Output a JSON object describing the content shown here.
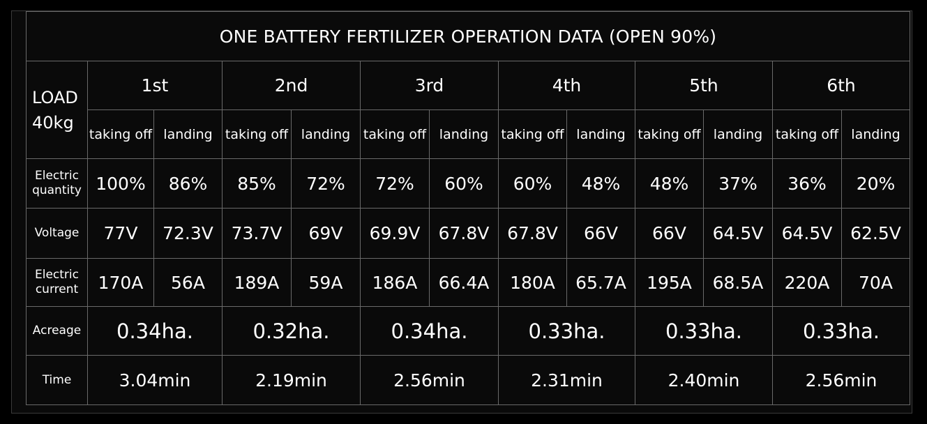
{
  "title": "ONE BATTERY FERTILIZER OPERATION DATA (OPEN 90%)",
  "load_label": "LOAD",
  "load_value": "40kg",
  "flights": [
    {
      "label": "1st",
      "takeoff": "taking off",
      "landing": "landing",
      "charge_takeoff": "100%",
      "charge_landing": "86%",
      "voltage_takeoff": "77V",
      "voltage_landing": "72.3V",
      "current_takeoff": "170A",
      "current_landing": "56A",
      "acreage": "0.34ha.",
      "time": "3.04min"
    },
    {
      "label": "2nd",
      "takeoff": "taking off",
      "landing": "landing",
      "charge_takeoff": "85%",
      "charge_landing": "72%",
      "voltage_takeoff": "73.7V",
      "voltage_landing": "69V",
      "current_takeoff": "189A",
      "current_landing": "59A",
      "acreage": "0.32ha.",
      "time": "2.19min"
    },
    {
      "label": "3rd",
      "takeoff": "taking off",
      "landing": "landing",
      "charge_takeoff": "72%",
      "charge_landing": "60%",
      "voltage_takeoff": "69.9V",
      "voltage_landing": "67.8V",
      "current_takeoff": "186A",
      "current_landing": "66.4A",
      "acreage": "0.34ha.",
      "time": "2.56min"
    },
    {
      "label": "4th",
      "takeoff": "taking off",
      "landing": "landing",
      "charge_takeoff": "60%",
      "charge_landing": "48%",
      "voltage_takeoff": "67.8V",
      "voltage_landing": "66V",
      "current_takeoff": "180A",
      "current_landing": "65.7A",
      "acreage": "0.33ha.",
      "time": "2.31min"
    },
    {
      "label": "5th",
      "takeoff": "taking off",
      "landing": "landing",
      "charge_takeoff": "48%",
      "charge_landing": "37%",
      "voltage_takeoff": "66V",
      "voltage_landing": "64.5V",
      "current_takeoff": "195A",
      "current_landing": "68.5A",
      "acreage": "0.33ha.",
      "time": "2.40min"
    },
    {
      "label": "6th",
      "takeoff": "taking off",
      "landing": "landing",
      "charge_takeoff": "36%",
      "charge_landing": "20%",
      "voltage_takeoff": "64.5V",
      "voltage_landing": "62.5V",
      "current_takeoff": "220A",
      "current_landing": "70A",
      "acreage": "0.33ha.",
      "time": "2.56min"
    }
  ],
  "row_labels": {
    "electric_quantity": "Electric quantity",
    "voltage": "Voltage",
    "electric_current": "Electric current",
    "acreage": "Acreage",
    "time": "Time"
  }
}
